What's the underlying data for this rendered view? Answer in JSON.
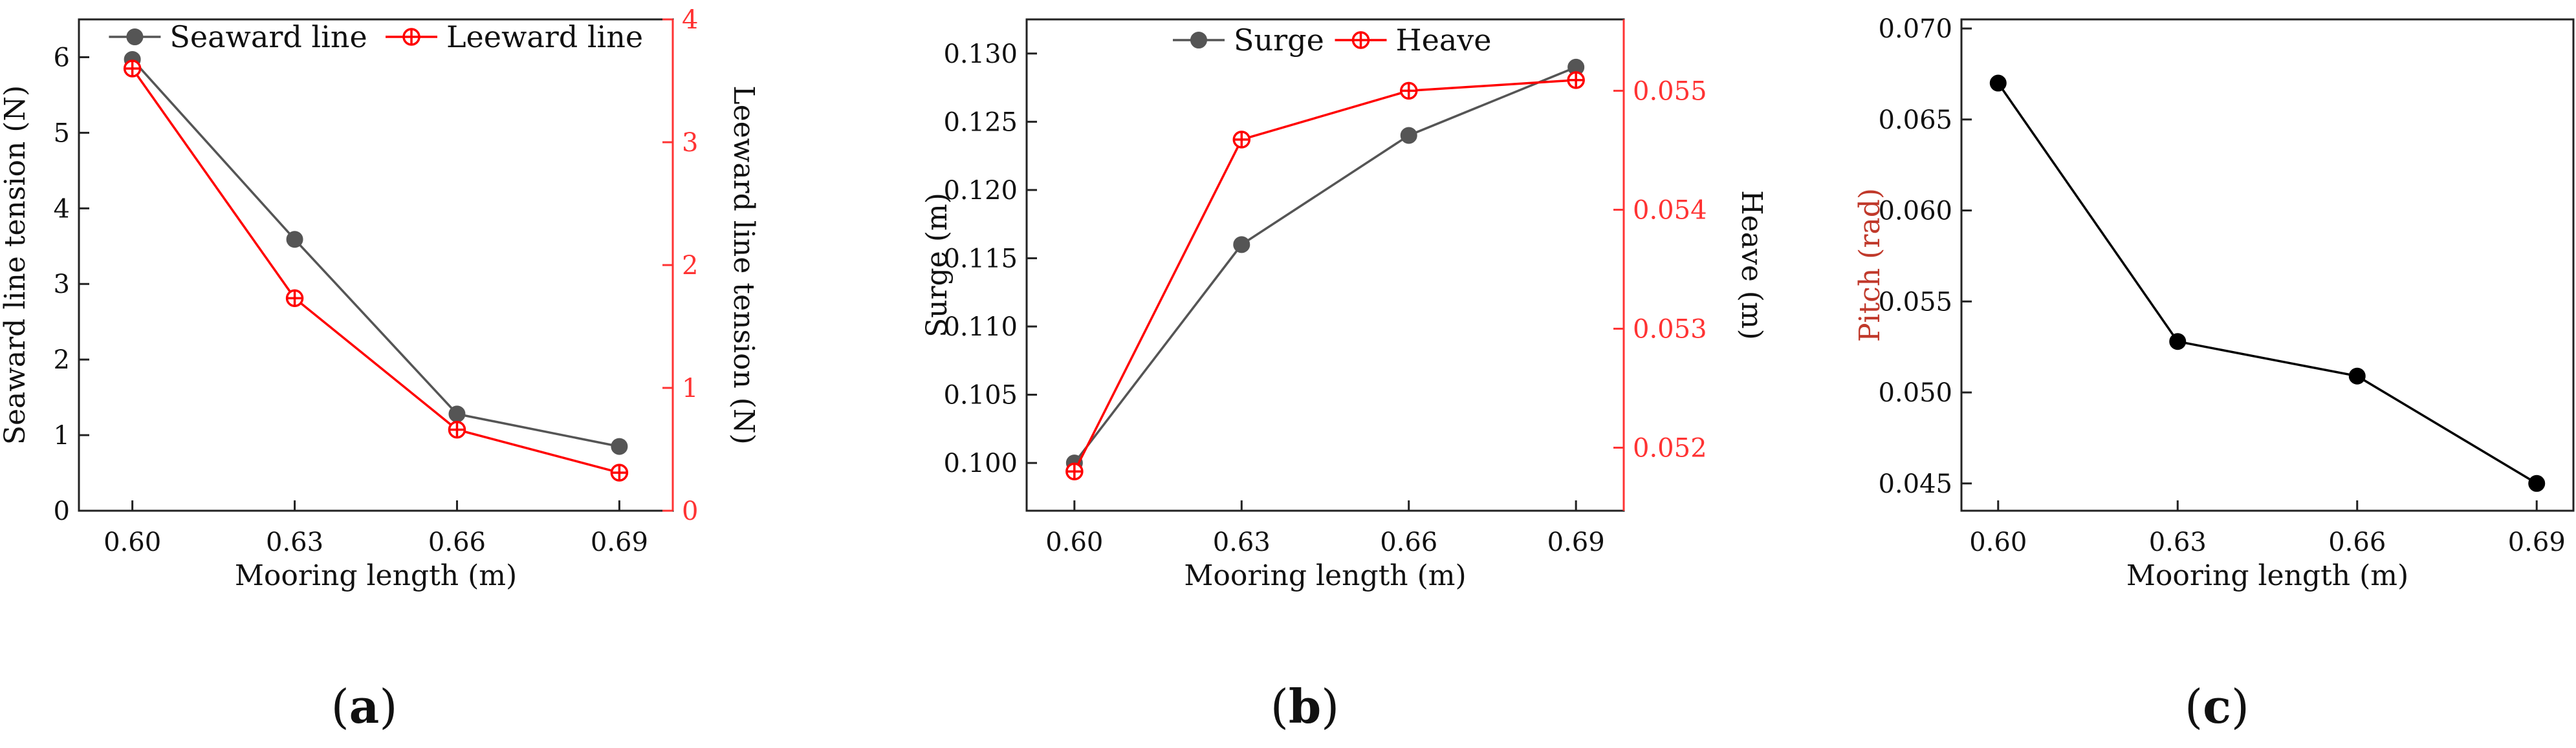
{
  "chart_data": [
    {
      "id": "a",
      "type": "line",
      "panel_label": "a",
      "x": [
        "0.60",
        "0.63",
        "0.66",
        "0.69"
      ],
      "xlabel": "Mooring length (m)",
      "ylabel_left": "Seaward line tension (N)",
      "ylabel_right": "Leeward line tension (N)",
      "ylim_left": [
        0,
        6.5
      ],
      "yticks_left": [
        "0",
        "1",
        "2",
        "3",
        "4",
        "5",
        "6"
      ],
      "ylim_right": [
        0,
        4
      ],
      "yticks_right": [
        "0",
        "1",
        "2",
        "3",
        "4"
      ],
      "legend": {
        "position": "top",
        "entries": [
          "Seaward line",
          "Leeward line"
        ]
      },
      "series": [
        {
          "name": "Seaward line",
          "axis": "left",
          "color": "#555555",
          "marker": "filled-circle",
          "values": [
            5.97,
            3.59,
            1.28,
            0.85
          ]
        },
        {
          "name": "Leeward line",
          "axis": "right",
          "color": "#ff0000",
          "marker": "crossed-circle",
          "values": [
            3.6,
            1.73,
            0.66,
            0.31
          ]
        }
      ]
    },
    {
      "id": "b",
      "type": "line",
      "panel_label": "b",
      "x": [
        "0.60",
        "0.63",
        "0.66",
        "0.69"
      ],
      "xlabel": "Mooring length (m)",
      "ylabel_left": "Surge (m)",
      "ylabel_right": "Heave (m)",
      "ylim_left": [
        0.0965,
        0.1325
      ],
      "yticks_left": [
        "0.100",
        "0.105",
        "0.110",
        "0.115",
        "0.120",
        "0.125",
        "0.130"
      ],
      "ylim_right": [
        0.05147,
        0.0556
      ],
      "yticks_right": [
        "0.052",
        "0.053",
        "0.054",
        "0.055"
      ],
      "legend": {
        "position": "top",
        "entries": [
          "Surge",
          "Heave"
        ]
      },
      "series": [
        {
          "name": "Surge",
          "axis": "left",
          "color": "#555555",
          "marker": "filled-circle",
          "values": [
            0.1,
            0.116,
            0.124,
            0.129
          ]
        },
        {
          "name": "Heave",
          "axis": "right",
          "color": "#ff0000",
          "marker": "crossed-circle",
          "values": [
            0.0518,
            0.05459,
            0.055,
            0.05509
          ]
        }
      ]
    },
    {
      "id": "c",
      "type": "line",
      "panel_label": "c",
      "x": [
        "0.60",
        "0.63",
        "0.66",
        "0.69"
      ],
      "xlabel": "Mooring length (m)",
      "ylabel_left": "Pitch (rad)",
      "ylim_left": [
        0.0435,
        0.0705
      ],
      "yticks_left": [
        "0.045",
        "0.050",
        "0.055",
        "0.060",
        "0.065",
        "0.070"
      ],
      "series": [
        {
          "name": "Pitch",
          "axis": "left",
          "color": "#000000",
          "marker": "filled-circle",
          "values": [
            0.067,
            0.0528,
            0.0509,
            0.045
          ]
        }
      ]
    }
  ]
}
